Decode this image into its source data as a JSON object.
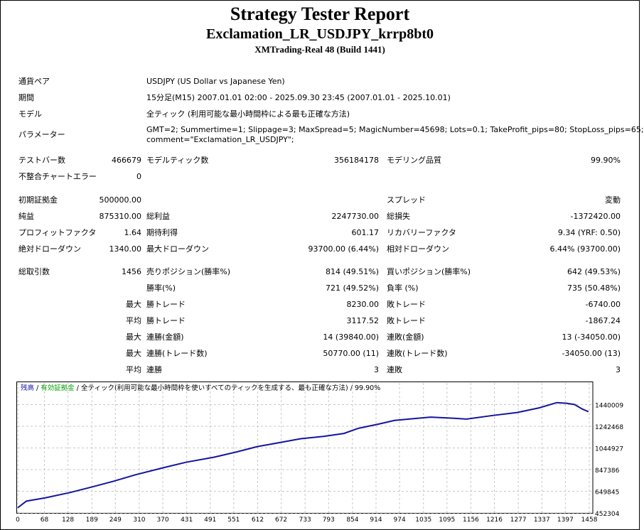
{
  "title": "Strategy Tester Report",
  "subtitle": "Exclamation_LR_USDJPY_krrp8bt0",
  "server": "XMTrading-Real 48 (Build 1441)",
  "info": [
    {
      "label": "通貨ペア",
      "value": "USDJPY (US Dollar vs Japanese Yen)"
    },
    {
      "label": "期間",
      "value": "15分足(M15) 2007.01.01 02:00 - 2025.09.30 23:45 (2007.01.01 - 2025.10.01)"
    },
    {
      "label": "モデル",
      "value": "全ティック (利用可能な最小時間枠による最も正確な方法)"
    },
    {
      "label": "パラメーター",
      "value": "GMT=2; Summertime=1; Slippage=3; MaxSpread=5; MagicNumber=45698; Lots=0.1; TakeProfit_pips=80; StopLoss_pips=65;",
      "value2": "comment=\"Exclamation_LR_USDJPY\";"
    }
  ],
  "rows": [
    [
      "テストバー数",
      "466679",
      "モデルティック数",
      "356184178",
      "モデリング品質",
      "99.90%"
    ],
    [
      "不整合チャートエラー",
      "0",
      "",
      "",
      "",
      ""
    ],
    [
      "初期証拠金",
      "500000.00",
      "",
      "",
      "スプレッド",
      "変動"
    ],
    [
      "純益",
      "875310.00",
      "総利益",
      "2247730.00",
      "総損失",
      "-1372420.00"
    ],
    [
      "プロフィットファクタ",
      "1.64",
      "期待利得",
      "601.17",
      "リカバリーファクタ",
      "9.34 (YRF: 0.50)"
    ],
    [
      "絶対ドローダウン",
      "1340.00",
      "最大ドローダウン",
      "93700.00 (6.44%)",
      "相対ドローダウン",
      "6.44% (93700.00)"
    ],
    [
      "総取引数",
      "1456",
      "売りポジション(勝率%)",
      "814 (49.51%)",
      "買いポジション(勝率%)",
      "642 (49.53%)"
    ],
    [
      "",
      "",
      "勝率(%)",
      "721 (49.52%)",
      "負率 (%)",
      "735 (50.48%)"
    ],
    [
      "",
      "最大",
      "勝トレード",
      "8230.00",
      "敗トレード",
      "-6740.00"
    ],
    [
      "",
      "平均",
      "勝トレード",
      "3117.52",
      "敗トレード",
      "-1867.24"
    ],
    [
      "",
      "最大",
      "連勝(金額)",
      "14 (39840.00)",
      "連敗(金額)",
      "13 (-34050.00)"
    ],
    [
      "",
      "最大",
      "連勝(トレード数)",
      "50770.00 (11)",
      "連敗(トレード数)",
      "-34050.00 (13)"
    ],
    [
      "",
      "平均",
      "連勝",
      "3",
      "連敗",
      "3"
    ]
  ],
  "chart_data": {
    "type": "line",
    "legend": {
      "balance": "残高",
      "sep": " / ",
      "equity": "有効証拠金",
      "model": "全ティック(利用可能な最小時間枠を使いすべてのティックを生成する、最も正確な方法)",
      "quality": "99.90%"
    },
    "colors": {
      "balance": "#1414a0",
      "equity": "#00a000",
      "grid": "#c8c8c8"
    },
    "x_ticks": [
      "0",
      "68",
      "128",
      "189",
      "249",
      "310",
      "370",
      "431",
      "491",
      "551",
      "612",
      "672",
      "733",
      "793",
      "854",
      "914",
      "974",
      "1035",
      "1095",
      "1156",
      "1216",
      "1277",
      "1337",
      "1397",
      "1458"
    ],
    "y_ticks": [
      "1440009",
      "1242468",
      "1044927",
      "847386",
      "649845",
      "452304"
    ],
    "xlim": [
      0,
      1458
    ],
    "ylim": [
      452304,
      1637550
    ],
    "series": [
      {
        "name": "残高",
        "x": [
          0,
          22,
          70,
          133,
          190,
          243,
          300,
          372,
          430,
          501,
          560,
          611,
          670,
          722,
          780,
          832,
          869,
          920,
          961,
          1010,
          1053,
          1100,
          1145,
          1210,
          1274,
          1330,
          1375,
          1400,
          1421,
          1440,
          1456
        ],
        "y": [
          500000,
          560000,
          590000,
          638000,
          690000,
          740000,
          800000,
          865000,
          915000,
          961000,
          1010000,
          1057000,
          1095000,
          1129000,
          1150000,
          1177000,
          1224000,
          1262000,
          1296000,
          1312000,
          1326000,
          1318000,
          1308000,
          1340000,
          1368000,
          1410000,
          1458000,
          1452000,
          1440000,
          1400000,
          1375310
        ]
      }
    ]
  }
}
